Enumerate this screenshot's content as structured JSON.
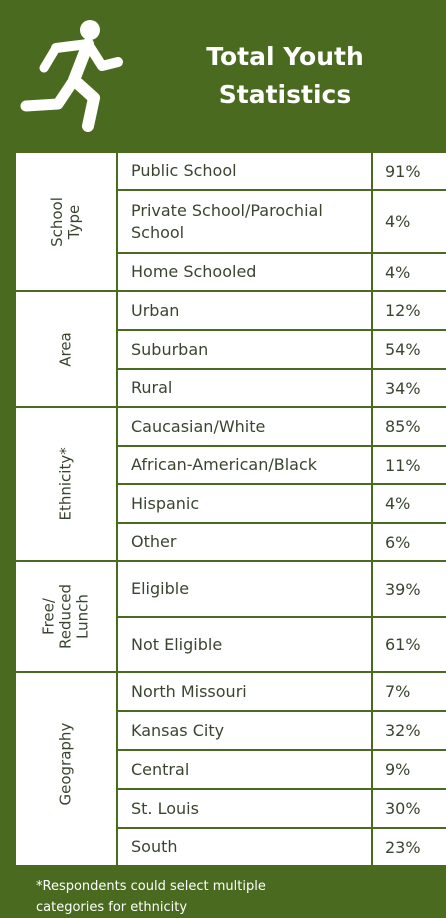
{
  "header": {
    "title": "Total Youth Statistics"
  },
  "table": {
    "groups": [
      {
        "label": "School Type",
        "rows": [
          [
            "Public School",
            "91%"
          ],
          [
            "Private School/Parochial School",
            "4%"
          ],
          [
            "Home Schooled",
            "4%"
          ]
        ]
      },
      {
        "label": "Area",
        "rows": [
          [
            "Urban",
            "12%"
          ],
          [
            "Suburban",
            "54%"
          ],
          [
            "Rural",
            "34%"
          ]
        ]
      },
      {
        "label": "Ethnicity*",
        "rows": [
          [
            "Caucasian/White",
            "85%"
          ],
          [
            "African-American/Black",
            "11%"
          ],
          [
            "Hispanic",
            "4%"
          ],
          [
            "Other",
            "6%"
          ]
        ]
      },
      {
        "label": "Free/ Reduced Lunch",
        "rows": [
          [
            "Eligible",
            "39%"
          ],
          [
            "Not Eligible",
            "61%"
          ]
        ]
      },
      {
        "label": "Geography",
        "rows": [
          [
            "North Missouri",
            "7%"
          ],
          [
            "Kansas City",
            "32%"
          ],
          [
            "Central",
            "9%"
          ],
          [
            "St. Louis",
            "30%"
          ],
          [
            "South",
            "23%"
          ]
        ]
      }
    ]
  },
  "footnote": "*Respondents could select multiple categories for ethnicity"
}
